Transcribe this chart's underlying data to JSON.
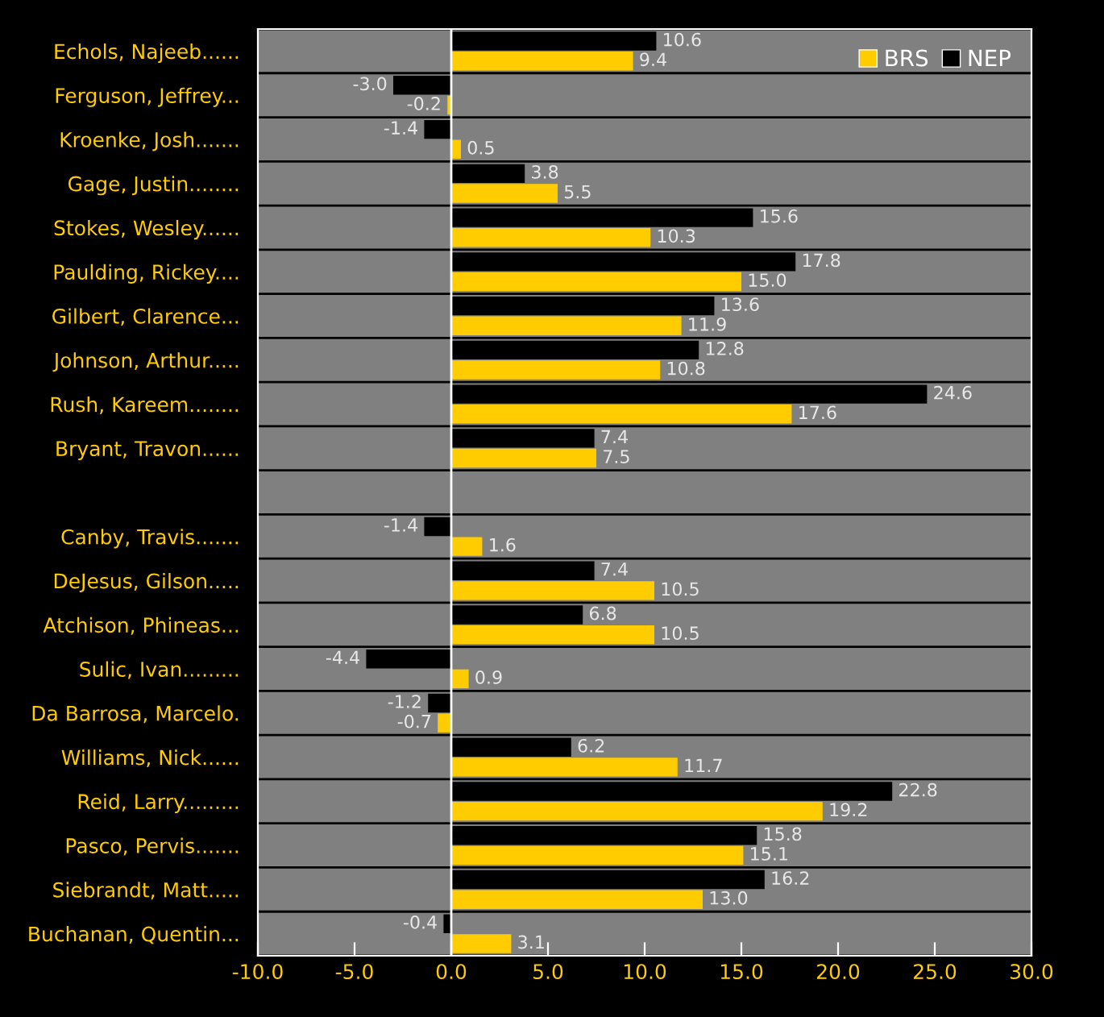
{
  "chart_data": {
    "type": "bar",
    "orientation": "horizontal",
    "categories": [
      "Echols, Najeeb......",
      "Ferguson, Jeffrey...",
      "Kroenke, Josh.......",
      "Gage, Justin........",
      "Stokes, Wesley......",
      "Paulding, Rickey....",
      "Gilbert, Clarence...",
      "Johnson, Arthur.....",
      "Rush, Kareem........",
      "Bryant, Travon......",
      null,
      "Canby, Travis.......",
      "DeJesus, Gilson.....",
      "Atchison, Phineas...",
      "Sulic, Ivan.........",
      "Da Barrosa, Marcelo.",
      "Williams, Nick......",
      "Reid, Larry.........",
      "Pasco, Pervis.......",
      "Siebrandt, Matt.....",
      "Buchanan, Quentin..."
    ],
    "series": [
      {
        "name": "NEP",
        "color": "#000000",
        "values": [
          10.6,
          -3.0,
          -1.4,
          3.8,
          15.6,
          17.8,
          13.6,
          12.8,
          24.6,
          7.4,
          null,
          -1.4,
          7.4,
          6.8,
          -4.4,
          -1.2,
          6.2,
          22.8,
          15.8,
          16.2,
          -0.4
        ],
        "value_labels": [
          "10.6",
          "-3.0",
          "-1.4",
          "3.8",
          "15.6",
          "17.8",
          "13.6",
          "12.8",
          "24.6",
          "7.4",
          null,
          "-1.4",
          "7.4",
          "6.8",
          "-4.4",
          "-1.2",
          "6.2",
          "22.8",
          "15.8",
          "16.2",
          "-0.4"
        ]
      },
      {
        "name": "BRS",
        "color": "#ffcc00",
        "values": [
          9.4,
          -0.2,
          0.5,
          5.5,
          10.3,
          15.0,
          11.9,
          10.8,
          17.6,
          7.5,
          null,
          1.6,
          10.5,
          10.5,
          0.9,
          -0.7,
          11.7,
          19.2,
          15.1,
          13.0,
          3.1
        ],
        "value_labels": [
          "9.4",
          "-0.2",
          "0.5",
          "5.5",
          "10.3",
          "15.0",
          "11.9",
          "10.8",
          "17.6",
          "7.5",
          null,
          "1.6",
          "10.5",
          "10.5",
          "0.9",
          "-0.7",
          "11.7",
          "19.2",
          "15.1",
          "13.0",
          "3.1"
        ]
      }
    ],
    "xlim": [
      -10.0,
      30.0
    ],
    "xticks": [
      {
        "value": -10,
        "label": "-10.0"
      },
      {
        "value": -5,
        "label": "-5.0"
      },
      {
        "value": 0,
        "label": "0.0"
      },
      {
        "value": 5,
        "label": "5.0"
      },
      {
        "value": 10,
        "label": "10.0"
      },
      {
        "value": 15,
        "label": "15.0"
      },
      {
        "value": 20,
        "label": "20.0"
      },
      {
        "value": 25,
        "label": "25.0"
      },
      {
        "value": 30,
        "label": "30.0"
      }
    ],
    "ref_lines": [
      {
        "axis": "x",
        "value": 0,
        "color": "#ffffff"
      }
    ],
    "legend": "top right"
  }
}
